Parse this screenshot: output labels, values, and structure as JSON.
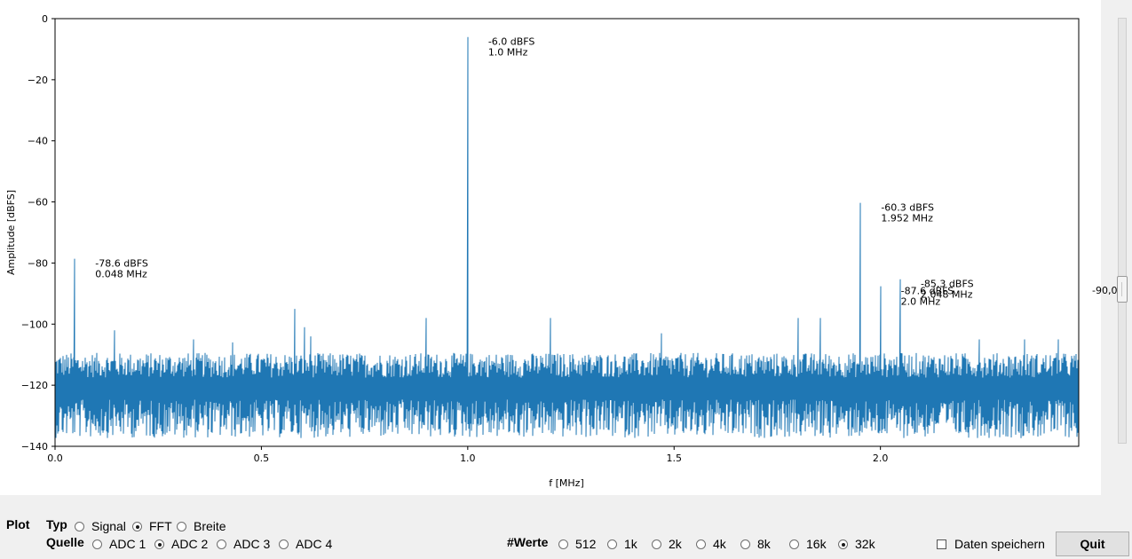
{
  "chart_data": {
    "type": "line",
    "title": "",
    "xlabel": "f [MHz]",
    "ylabel": "Amplitude [dBFS]",
    "xlim": [
      0,
      2.4805
    ],
    "ylim": [
      -140,
      0
    ],
    "x_ticks": [
      0.0,
      0.5,
      1.0,
      1.5,
      2.0
    ],
    "x_tick_labels": [
      "0.0",
      "0.5",
      "1.0",
      "1.5",
      "2.0"
    ],
    "y_ticks": [
      0,
      -20,
      -40,
      -60,
      -80,
      -100,
      -120,
      -140
    ],
    "y_tick_labels": [
      "0",
      "−20",
      "−40",
      "−60",
      "−80",
      "−100",
      "−120",
      "−140"
    ],
    "grid": false,
    "series_color": "#1f77b4",
    "noise_floor_db": -122,
    "noise_spread_db": 9,
    "dc_component_db": 0,
    "spurs": [
      {
        "f": 0.048,
        "db": -78.6
      },
      {
        "f": 0.145,
        "db": -102
      },
      {
        "f": 0.335,
        "db": -105
      },
      {
        "f": 0.43,
        "db": -106
      },
      {
        "f": 0.58,
        "db": -95
      },
      {
        "f": 0.605,
        "db": -101
      },
      {
        "f": 0.62,
        "db": -104
      },
      {
        "f": 0.9,
        "db": -98
      },
      {
        "f": 1.0,
        "db": -6.0
      },
      {
        "f": 1.2,
        "db": -98
      },
      {
        "f": 1.47,
        "db": -103
      },
      {
        "f": 1.8,
        "db": -98
      },
      {
        "f": 1.855,
        "db": -98
      },
      {
        "f": 1.952,
        "db": -60.3
      },
      {
        "f": 2.0,
        "db": -87.6
      },
      {
        "f": 2.048,
        "db": -85.3
      },
      {
        "f": 2.24,
        "db": -105
      },
      {
        "f": 2.35,
        "db": -105
      },
      {
        "f": 2.43,
        "db": -105
      }
    ],
    "annotations": [
      {
        "f": 1.0,
        "db": -6.0,
        "line1": "-6.0 dBFS",
        "line2": "1.0 MHz"
      },
      {
        "f": 0.048,
        "db": -78.6,
        "line1": "-78.6 dBFS",
        "line2": "0.048 MHz"
      },
      {
        "f": 1.952,
        "db": -60.3,
        "line1": "-60.3 dBFS",
        "line2": "1.952 MHz"
      },
      {
        "f": 2.0,
        "db": -87.6,
        "line1": "-87.6 dBFS",
        "line2": "2.0 MHz"
      },
      {
        "f": 2.048,
        "db": -85.3,
        "line1": "-85.3 dBFS",
        "line2": "2.048 MHz"
      }
    ]
  },
  "threshold_scale": {
    "value_label": "-90,0",
    "value": -90.0
  },
  "controls": {
    "plot_label": "Plot",
    "typ": {
      "label": "Typ",
      "options": [
        {
          "label": "Signal",
          "checked": false
        },
        {
          "label": "FFT",
          "checked": true
        },
        {
          "label": "Breite",
          "checked": false
        }
      ]
    },
    "quelle": {
      "label": "Quelle",
      "options": [
        {
          "label": "ADC 1",
          "checked": false
        },
        {
          "label": "ADC 2",
          "checked": true
        },
        {
          "label": "ADC 3",
          "checked": false
        },
        {
          "label": "ADC 4",
          "checked": false
        }
      ]
    },
    "werte": {
      "label": "#Werte",
      "options": [
        {
          "label": "512",
          "checked": false
        },
        {
          "label": "1k",
          "checked": false
        },
        {
          "label": "2k",
          "checked": false
        },
        {
          "label": "4k",
          "checked": false
        },
        {
          "label": "8k",
          "checked": false
        },
        {
          "label": "16k",
          "checked": false
        },
        {
          "label": "32k",
          "checked": true
        }
      ]
    },
    "save_checkbox_label": "Daten speichern",
    "save_checked": false,
    "quit_label": "Quit"
  }
}
